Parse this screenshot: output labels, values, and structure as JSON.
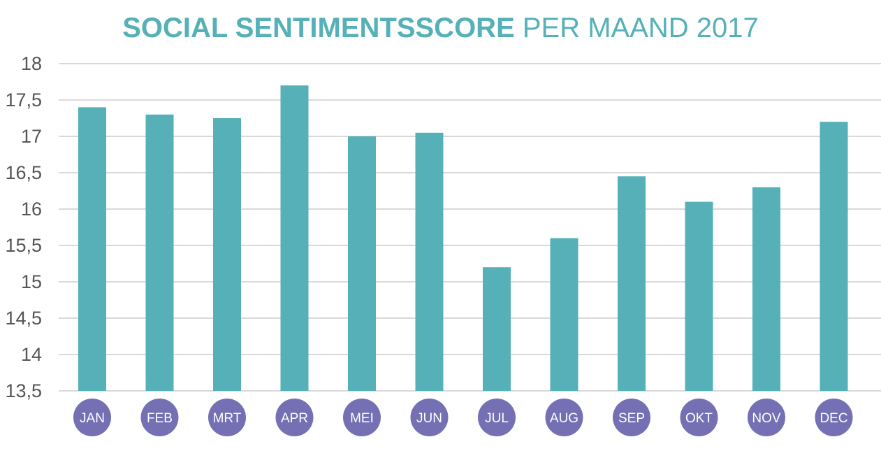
{
  "chart_data": {
    "type": "bar",
    "title_bold": "SOCIAL SENTIMENTSSCORE",
    "title_rest": "PER MAAND 2017",
    "categories": [
      "JAN",
      "FEB",
      "MRT",
      "APR",
      "MEI",
      "JUN",
      "JUL",
      "AUG",
      "SEP",
      "OKT",
      "NOV",
      "DEC"
    ],
    "values": [
      17.4,
      17.3,
      17.25,
      17.7,
      17.0,
      17.05,
      15.2,
      15.6,
      16.45,
      16.1,
      16.3,
      17.2
    ],
    "ylim": [
      13.5,
      18
    ],
    "yticks": [
      "13,5",
      "14",
      "14,5",
      "15",
      "15,5",
      "16",
      "16,5",
      "17",
      "17,5",
      "18"
    ],
    "ytick_values": [
      13.5,
      14,
      14.5,
      15,
      15.5,
      16,
      16.5,
      17,
      17.5,
      18
    ],
    "grid": true,
    "colors": {
      "bar": "#55b1b7",
      "category_circle": "#7470b3",
      "grid": "#d9d9d9",
      "title": "#55b1b7"
    }
  }
}
